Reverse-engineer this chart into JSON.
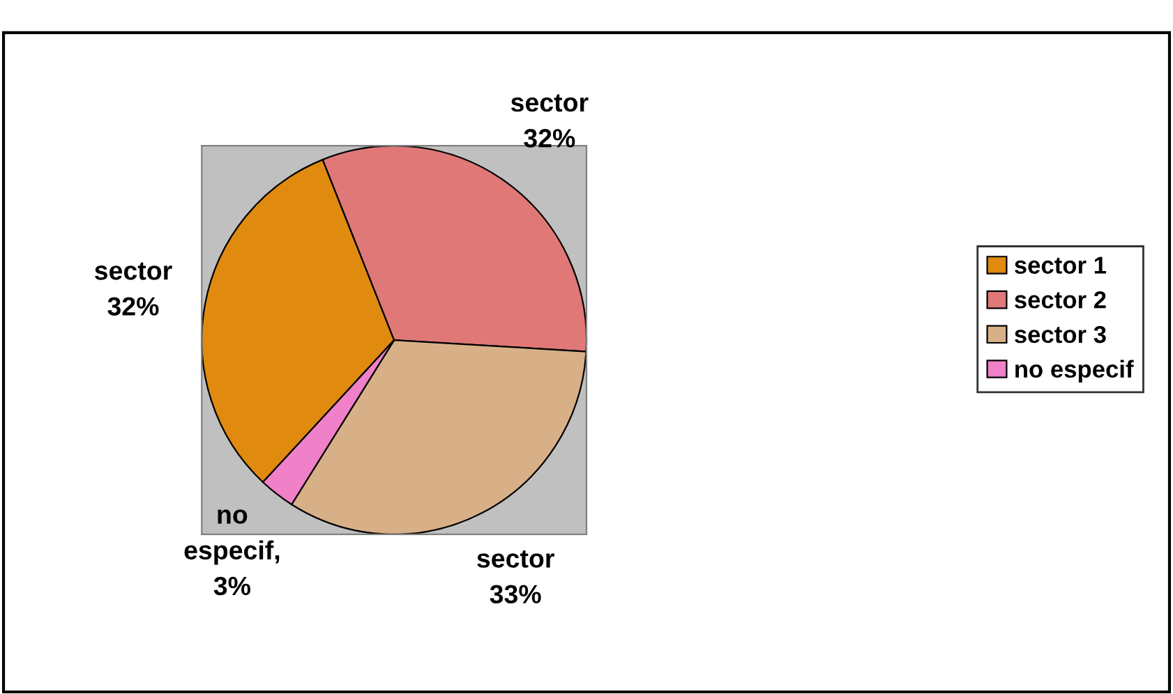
{
  "chart_data": {
    "type": "pie",
    "categories": [
      "sector 1",
      "sector 2",
      "sector 3",
      "no especif"
    ],
    "values": [
      32,
      32,
      33,
      3
    ],
    "colors": [
      "#e08a10",
      "#e07878",
      "#d8b088",
      "#f080c8"
    ],
    "value_labels": [
      "sector\n32%",
      "sector\n32%",
      "sector\n33%",
      "no\nespecif,\n3%"
    ],
    "legend": "right"
  }
}
